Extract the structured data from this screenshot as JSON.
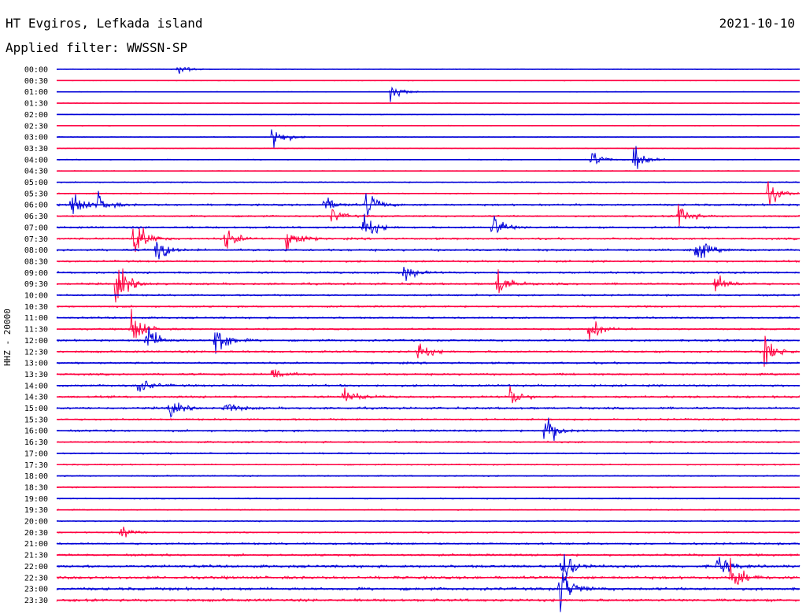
{
  "header": {
    "station": "HT Evgiros, Lefkada island",
    "date": "2021-10-10",
    "filter": "Applied filter: WWSSN-SP",
    "channel": "HHZ - 20000"
  },
  "colors": {
    "even_row": "#0000d8",
    "odd_row": "#ff0040"
  },
  "chart_data": {
    "type": "line",
    "title": "HT Evgiros, Lefkada island",
    "subtitle": "Applied filter: WWSSN-SP",
    "ylabel": "HHZ - 20000",
    "xlabel": "",
    "rows": [
      "00:00",
      "00:30",
      "01:00",
      "01:30",
      "02:00",
      "02:30",
      "03:00",
      "03:30",
      "04:00",
      "04:30",
      "05:00",
      "05:30",
      "06:00",
      "06:30",
      "07:00",
      "07:30",
      "08:00",
      "08:30",
      "09:00",
      "09:30",
      "10:00",
      "10:30",
      "11:00",
      "11:30",
      "12:00",
      "12:30",
      "13:00",
      "13:30",
      "14:00",
      "14:30",
      "15:00",
      "15:30",
      "16:00",
      "16:30",
      "17:00",
      "17:30",
      "18:00",
      "18:30",
      "19:00",
      "19:30",
      "20:00",
      "20:30",
      "21:00",
      "21:30",
      "22:00",
      "22:30",
      "23:00",
      "23:30"
    ],
    "row_duration_minutes": 30,
    "noise_level": [
      0.3,
      0.3,
      0.3,
      0.3,
      0.35,
      0.35,
      0.35,
      0.35,
      0.4,
      0.4,
      0.5,
      0.55,
      0.9,
      0.8,
      0.9,
      0.9,
      1.0,
      0.9,
      0.9,
      0.9,
      0.8,
      0.8,
      0.8,
      0.8,
      0.9,
      0.9,
      0.9,
      0.9,
      1.0,
      1.0,
      1.0,
      0.9,
      0.9,
      0.8,
      0.7,
      0.6,
      0.6,
      0.6,
      0.5,
      0.5,
      0.6,
      0.6,
      0.9,
      1.0,
      1.2,
      1.3,
      1.3,
      1.2
    ],
    "events": [
      {
        "row": 0,
        "minute": 4.9,
        "amplitude": 6
      },
      {
        "row": 2,
        "minute": 13.5,
        "amplitude": 12
      },
      {
        "row": 6,
        "minute": 8.7,
        "amplitude": 18
      },
      {
        "row": 8,
        "minute": 23.3,
        "amplitude": 18
      },
      {
        "row": 8,
        "minute": 21.6,
        "amplitude": 10
      },
      {
        "row": 11,
        "minute": 28.7,
        "amplitude": 16
      },
      {
        "row": 12,
        "minute": 0.6,
        "amplitude": 18
      },
      {
        "row": 12,
        "minute": 1.6,
        "amplitude": 14
      },
      {
        "row": 12,
        "minute": 12.5,
        "amplitude": 16
      },
      {
        "row": 12,
        "minute": 10.8,
        "amplitude": 10
      },
      {
        "row": 13,
        "minute": 11.1,
        "amplitude": 8
      },
      {
        "row": 13,
        "minute": 25.1,
        "amplitude": 14
      },
      {
        "row": 14,
        "minute": 12.4,
        "amplitude": 18
      },
      {
        "row": 14,
        "minute": 17.6,
        "amplitude": 16
      },
      {
        "row": 15,
        "minute": 3.1,
        "amplitude": 30
      },
      {
        "row": 15,
        "minute": 6.8,
        "amplitude": 14
      },
      {
        "row": 15,
        "minute": 9.3,
        "amplitude": 18
      },
      {
        "row": 16,
        "minute": 4.0,
        "amplitude": 16
      },
      {
        "row": 16,
        "minute": 25.8,
        "amplitude": 16
      },
      {
        "row": 18,
        "minute": 14.0,
        "amplitude": 10
      },
      {
        "row": 19,
        "minute": 2.4,
        "amplitude": 26
      },
      {
        "row": 19,
        "minute": 17.8,
        "amplitude": 18
      },
      {
        "row": 19,
        "minute": 26.6,
        "amplitude": 12
      },
      {
        "row": 23,
        "minute": 3.0,
        "amplitude": 24
      },
      {
        "row": 23,
        "minute": 21.5,
        "amplitude": 16
      },
      {
        "row": 24,
        "minute": 6.4,
        "amplitude": 26
      },
      {
        "row": 24,
        "minute": 3.6,
        "amplitude": 20
      },
      {
        "row": 25,
        "minute": 14.6,
        "amplitude": 12
      },
      {
        "row": 25,
        "minute": 28.6,
        "amplitude": 18
      },
      {
        "row": 27,
        "minute": 8.7,
        "amplitude": 10
      },
      {
        "row": 28,
        "minute": 3.3,
        "amplitude": 12
      },
      {
        "row": 29,
        "minute": 11.6,
        "amplitude": 14
      },
      {
        "row": 29,
        "minute": 18.3,
        "amplitude": 12
      },
      {
        "row": 30,
        "minute": 4.5,
        "amplitude": 12
      },
      {
        "row": 30,
        "minute": 6.8,
        "amplitude": 10
      },
      {
        "row": 32,
        "minute": 19.7,
        "amplitude": 24
      },
      {
        "row": 41,
        "minute": 2.6,
        "amplitude": 8
      },
      {
        "row": 44,
        "minute": 20.4,
        "amplitude": 22
      },
      {
        "row": 44,
        "minute": 26.7,
        "amplitude": 14
      },
      {
        "row": 45,
        "minute": 27.2,
        "amplitude": 20
      },
      {
        "row": 46,
        "minute": 20.3,
        "amplitude": 30
      }
    ]
  }
}
